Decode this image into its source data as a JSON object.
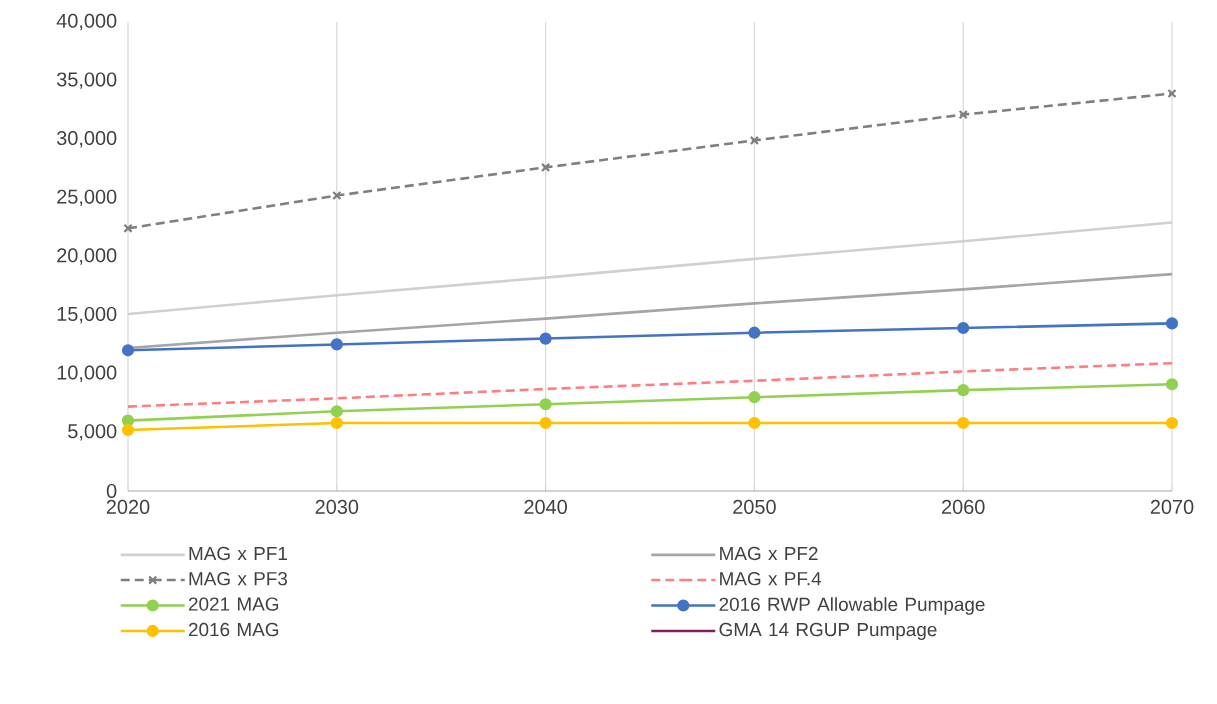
{
  "chart_data": {
    "type": "line",
    "x": [
      2020,
      2030,
      2040,
      2050,
      2060,
      2070
    ],
    "xlim": [
      2020,
      2070
    ],
    "xticks": [
      2020,
      2030,
      2040,
      2050,
      2060,
      2070
    ],
    "ylim": [
      0,
      40000
    ],
    "yticks": [
      {
        "value": 0,
        "label": "0"
      },
      {
        "value": 5000,
        "label": "5,000"
      },
      {
        "value": 10000,
        "label": "10,000"
      },
      {
        "value": 15000,
        "label": "15,000"
      },
      {
        "value": 20000,
        "label": "20,000"
      },
      {
        "value": 25000,
        "label": "25,000"
      },
      {
        "value": 30000,
        "label": "30,000"
      },
      {
        "value": 35000,
        "label": "35,000"
      },
      {
        "value": 40000,
        "label": "40,000"
      }
    ],
    "grid": "x",
    "legend": "bottom",
    "series": [
      {
        "name": "MAG x PF1",
        "color": "#d0d0d0",
        "marker": "none",
        "line_style": "solid",
        "values": [
          15100,
          16700,
          18200,
          19800,
          21300,
          22900
        ]
      },
      {
        "name": "MAG x PF2",
        "color": "#a5a5a5",
        "marker": "none",
        "line_style": "solid",
        "values": [
          12200,
          13500,
          14700,
          16000,
          17200,
          18500
        ]
      },
      {
        "name": "MAG x PF3",
        "color": "#7f7f7f",
        "marker": "cross",
        "line_style": "dashed",
        "values": [
          22400,
          25200,
          27600,
          29900,
          32100,
          33900
        ]
      },
      {
        "name": "MAG x PF.4",
        "color": "#ff7c80",
        "marker": "none",
        "line_style": "dashed",
        "values": [
          7200,
          7900,
          8700,
          9400,
          10200,
          10900
        ]
      },
      {
        "name": "2021 MAG",
        "color": "#92d050",
        "marker": "circle",
        "line_style": "solid",
        "values": [
          6000,
          6800,
          7400,
          8000,
          8600,
          9100
        ]
      },
      {
        "name": "2016 RWP Allowable Pumpage",
        "color": "#4472c4",
        "marker": "circle",
        "line_style": "solid",
        "values": [
          12000,
          12500,
          13000,
          13500,
          13900,
          14300
        ]
      },
      {
        "name": "2016 MAG",
        "color": "#ffc000",
        "marker": "circle",
        "line_style": "solid",
        "values": [
          5200,
          5800,
          5800,
          5800,
          5800,
          5800
        ]
      },
      {
        "name": "GMA 14 RGUP Pumpage",
        "color": "#7f2060",
        "marker": "none",
        "line_style": "solid",
        "values": [
          null,
          null,
          null,
          null,
          null,
          null
        ]
      }
    ]
  }
}
